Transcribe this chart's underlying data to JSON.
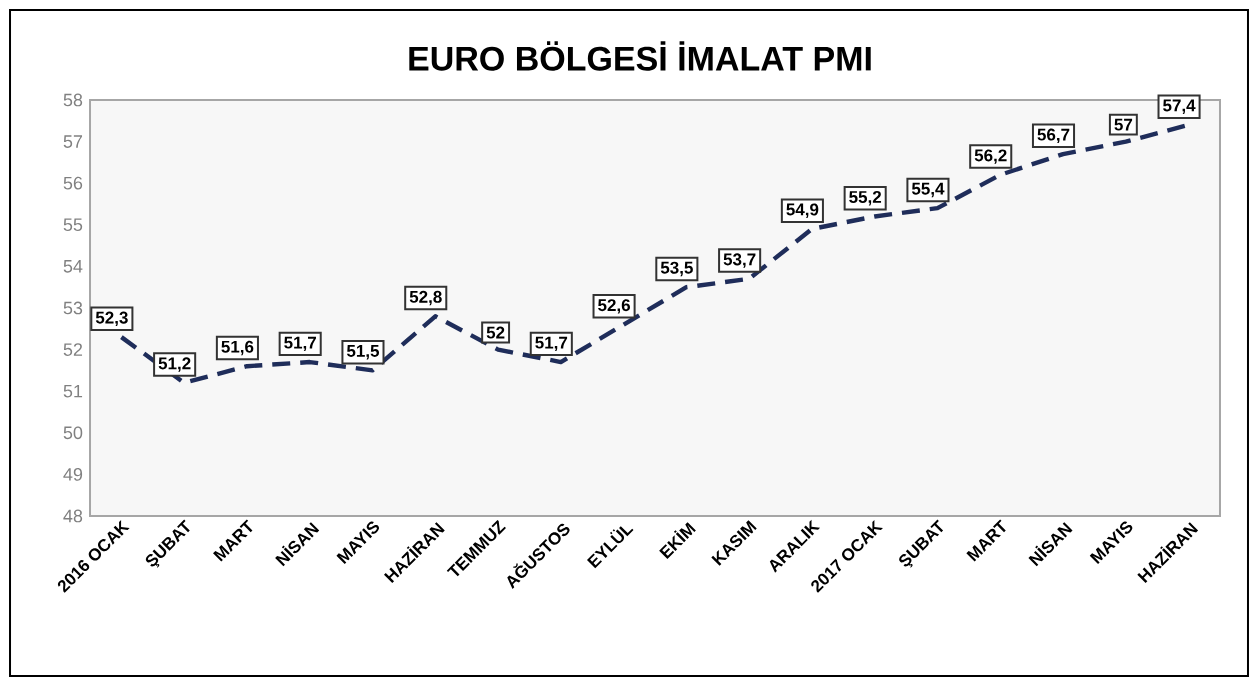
{
  "chart_data": {
    "type": "line",
    "title": "EURO BÖLGESİ İMALAT PMI",
    "categories": [
      "2016 OCAK",
      "ŞUBAT",
      "MART",
      "NİSAN",
      "MAYIS",
      "HAZİRAN",
      "TEMMUZ",
      "AĞUSTOS",
      "EYLÜL",
      "EKİM",
      "KASIM",
      "ARALIK",
      "2017 OCAK",
      "ŞUBAT",
      "MART",
      "NİSAN",
      "MAYIS",
      "HAZİRAN"
    ],
    "series": [
      {
        "color": "#1f2d5a",
        "values": [
          52.3,
          51.2,
          51.6,
          51.7,
          51.5,
          52.8,
          52,
          51.7,
          52.6,
          53.5,
          53.7,
          54.9,
          55.2,
          55.4,
          56.2,
          56.7,
          57,
          57.4
        ],
        "value_labels": [
          "52,3",
          "51,2",
          "51,6",
          "51,7",
          "51,5",
          "52,8",
          "52",
          "51,7",
          "52,6",
          "53,5",
          "53,7",
          "54,9",
          "55,2",
          "55,4",
          "56,2",
          "56,7",
          "57",
          "57,4"
        ]
      }
    ],
    "ylim": [
      48,
      58
    ],
    "yticks": [
      48,
      49,
      50,
      51,
      52,
      53,
      54,
      55,
      56,
      57,
      58
    ],
    "line_style": "dashed",
    "marker": "none"
  }
}
